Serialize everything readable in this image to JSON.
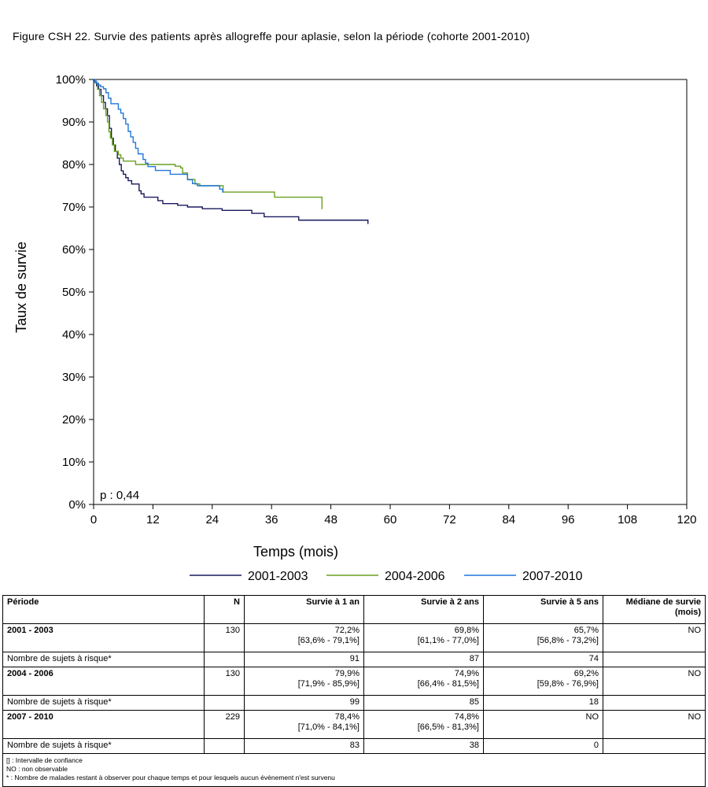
{
  "figure_title": "Figure CSH 22. Survie des patients après allogreffe pour aplasie, selon la période (cohorte 2001-2010)",
  "chart_data": {
    "type": "line",
    "title": "",
    "xlabel": "Temps (mois)",
    "ylabel": "Taux de survie",
    "xlim": [
      0,
      120
    ],
    "ylim": [
      0,
      100
    ],
    "x_ticks": [
      0,
      12,
      24,
      36,
      48,
      60,
      72,
      84,
      96,
      108,
      120
    ],
    "y_ticks": [
      0,
      10,
      20,
      30,
      40,
      50,
      60,
      70,
      80,
      90,
      100
    ],
    "y_tick_labels": [
      "0%",
      "10%",
      "20%",
      "30%",
      "40%",
      "50%",
      "60%",
      "70%",
      "80%",
      "90%",
      "100%"
    ],
    "grid": false,
    "legend_position": "bottom",
    "annotation": "p : 0,44",
    "series": [
      {
        "name": "2001-2003",
        "color": "#1a1a5e",
        "step": true,
        "points": [
          [
            0,
            100
          ],
          [
            0.3,
            99.2
          ],
          [
            0.6,
            98.5
          ],
          [
            1,
            97.7
          ],
          [
            1.5,
            96.2
          ],
          [
            2,
            94.6
          ],
          [
            2.4,
            93.1
          ],
          [
            2.8,
            91.5
          ],
          [
            3.2,
            88.5
          ],
          [
            3.6,
            86.2
          ],
          [
            4,
            84.6
          ],
          [
            4.4,
            83.1
          ],
          [
            4.8,
            81.5
          ],
          [
            5.2,
            80
          ],
          [
            5.6,
            78.5
          ],
          [
            6,
            77.7
          ],
          [
            6.5,
            76.9
          ],
          [
            7,
            76.2
          ],
          [
            7.7,
            75.4
          ],
          [
            8.7,
            75.4
          ],
          [
            9.2,
            73.8
          ],
          [
            9.6,
            73.1
          ],
          [
            10.2,
            72.3
          ],
          [
            12,
            72.3
          ],
          [
            13,
            71.5
          ],
          [
            14,
            70.8
          ],
          [
            16,
            70.8
          ],
          [
            17,
            70.4
          ],
          [
            19,
            70
          ],
          [
            22,
            69.6
          ],
          [
            26,
            69.2
          ],
          [
            31,
            69.2
          ],
          [
            32,
            68.5
          ],
          [
            34,
            68.5
          ],
          [
            34.5,
            67.7
          ],
          [
            40,
            67.7
          ],
          [
            41.5,
            66.9
          ],
          [
            55,
            66.9
          ],
          [
            55.5,
            66
          ]
        ]
      },
      {
        "name": "2004-2006",
        "color": "#6aa121",
        "step": true,
        "points": [
          [
            0,
            100
          ],
          [
            0.4,
            99.2
          ],
          [
            0.8,
            97.7
          ],
          [
            1.2,
            96.2
          ],
          [
            1.6,
            94.6
          ],
          [
            2,
            93.1
          ],
          [
            2.5,
            91.5
          ],
          [
            2.8,
            90
          ],
          [
            3.1,
            87.7
          ],
          [
            3.4,
            86.2
          ],
          [
            3.8,
            84.6
          ],
          [
            4.2,
            83.1
          ],
          [
            5,
            82.3
          ],
          [
            5.5,
            81.5
          ],
          [
            6,
            80.8
          ],
          [
            8,
            80.8
          ],
          [
            8.5,
            80
          ],
          [
            15,
            80
          ],
          [
            16.5,
            79.6
          ],
          [
            17.6,
            79.2
          ],
          [
            18,
            78
          ],
          [
            19,
            76.5
          ],
          [
            20.5,
            75.4
          ],
          [
            21.5,
            75
          ],
          [
            25,
            75
          ],
          [
            26.2,
            73.5
          ],
          [
            36,
            73.5
          ],
          [
            36.6,
            72.3
          ],
          [
            46,
            72.3
          ],
          [
            46.2,
            69.5
          ]
        ]
      },
      {
        "name": "2007-2010",
        "color": "#2277dd",
        "step": true,
        "points": [
          [
            0,
            100
          ],
          [
            0.2,
            99.6
          ],
          [
            0.6,
            99.1
          ],
          [
            1,
            98.7
          ],
          [
            1.4,
            98.3
          ],
          [
            2,
            97.8
          ],
          [
            2.5,
            96.9
          ],
          [
            3,
            95.6
          ],
          [
            3.5,
            94.3
          ],
          [
            4.5,
            94.3
          ],
          [
            5,
            93
          ],
          [
            5.5,
            92.1
          ],
          [
            6,
            90.8
          ],
          [
            6.5,
            89.5
          ],
          [
            7,
            87.8
          ],
          [
            7.5,
            86.5
          ],
          [
            8,
            85.2
          ],
          [
            8.5,
            83.8
          ],
          [
            9,
            82.5
          ],
          [
            10,
            81.2
          ],
          [
            10.5,
            80.3
          ],
          [
            11,
            79.5
          ],
          [
            12,
            79.5
          ],
          [
            12.5,
            78.6
          ],
          [
            15,
            78.6
          ],
          [
            15.5,
            77.7
          ],
          [
            18,
            77.7
          ],
          [
            19,
            76.4
          ],
          [
            20,
            75.5
          ],
          [
            21,
            75
          ],
          [
            24.5,
            75
          ],
          [
            25.5,
            74.2
          ],
          [
            26.1,
            73.4
          ]
        ]
      }
    ]
  },
  "table": {
    "headers": [
      "Période",
      "N",
      "Survie à 1 an",
      "Survie à 2 ans",
      "Survie à 5 ans",
      "Médiane de survie (mois)"
    ],
    "groups": [
      {
        "period": "2001 - 2003",
        "n": "130",
        "s1": "72,2%",
        "s1_ci": "[63,6% - 79,1%]",
        "s2": "69,8%",
        "s2_ci": "[61,1% - 77,0%]",
        "s5": "65,7%",
        "s5_ci": "[56,8% - 73,2%]",
        "median": "NO",
        "risk_label": "Nombre de sujets à risque*",
        "risk": [
          "91",
          "87",
          "74"
        ]
      },
      {
        "period": "2004 - 2006",
        "n": "130",
        "s1": "79,9%",
        "s1_ci": "[71,9% - 85,9%]",
        "s2": "74,9%",
        "s2_ci": "[66,4% - 81,5%]",
        "s5": "69,2%",
        "s5_ci": "[59,8% - 76,9%]",
        "median": "NO",
        "risk_label": "Nombre de sujets à risque*",
        "risk": [
          "99",
          "85",
          "18"
        ]
      },
      {
        "period": "2007 - 2010",
        "n": "229",
        "s1": "78,4%",
        "s1_ci": "[71,0% - 84,1%]",
        "s2": "74,8%",
        "s2_ci": "[66,5% - 81,3%]",
        "s5": "NO",
        "s5_ci": "",
        "median": "NO",
        "risk_label": "Nombre de sujets à risque*",
        "risk": [
          "83",
          "38",
          "0"
        ]
      }
    ],
    "notes": [
      "[] : Intervalle de confiance",
      "NO : non observable",
      "* : Nombre de malades restant à observer pour chaque temps et pour lesquels aucun évènement n'est survenu"
    ]
  }
}
